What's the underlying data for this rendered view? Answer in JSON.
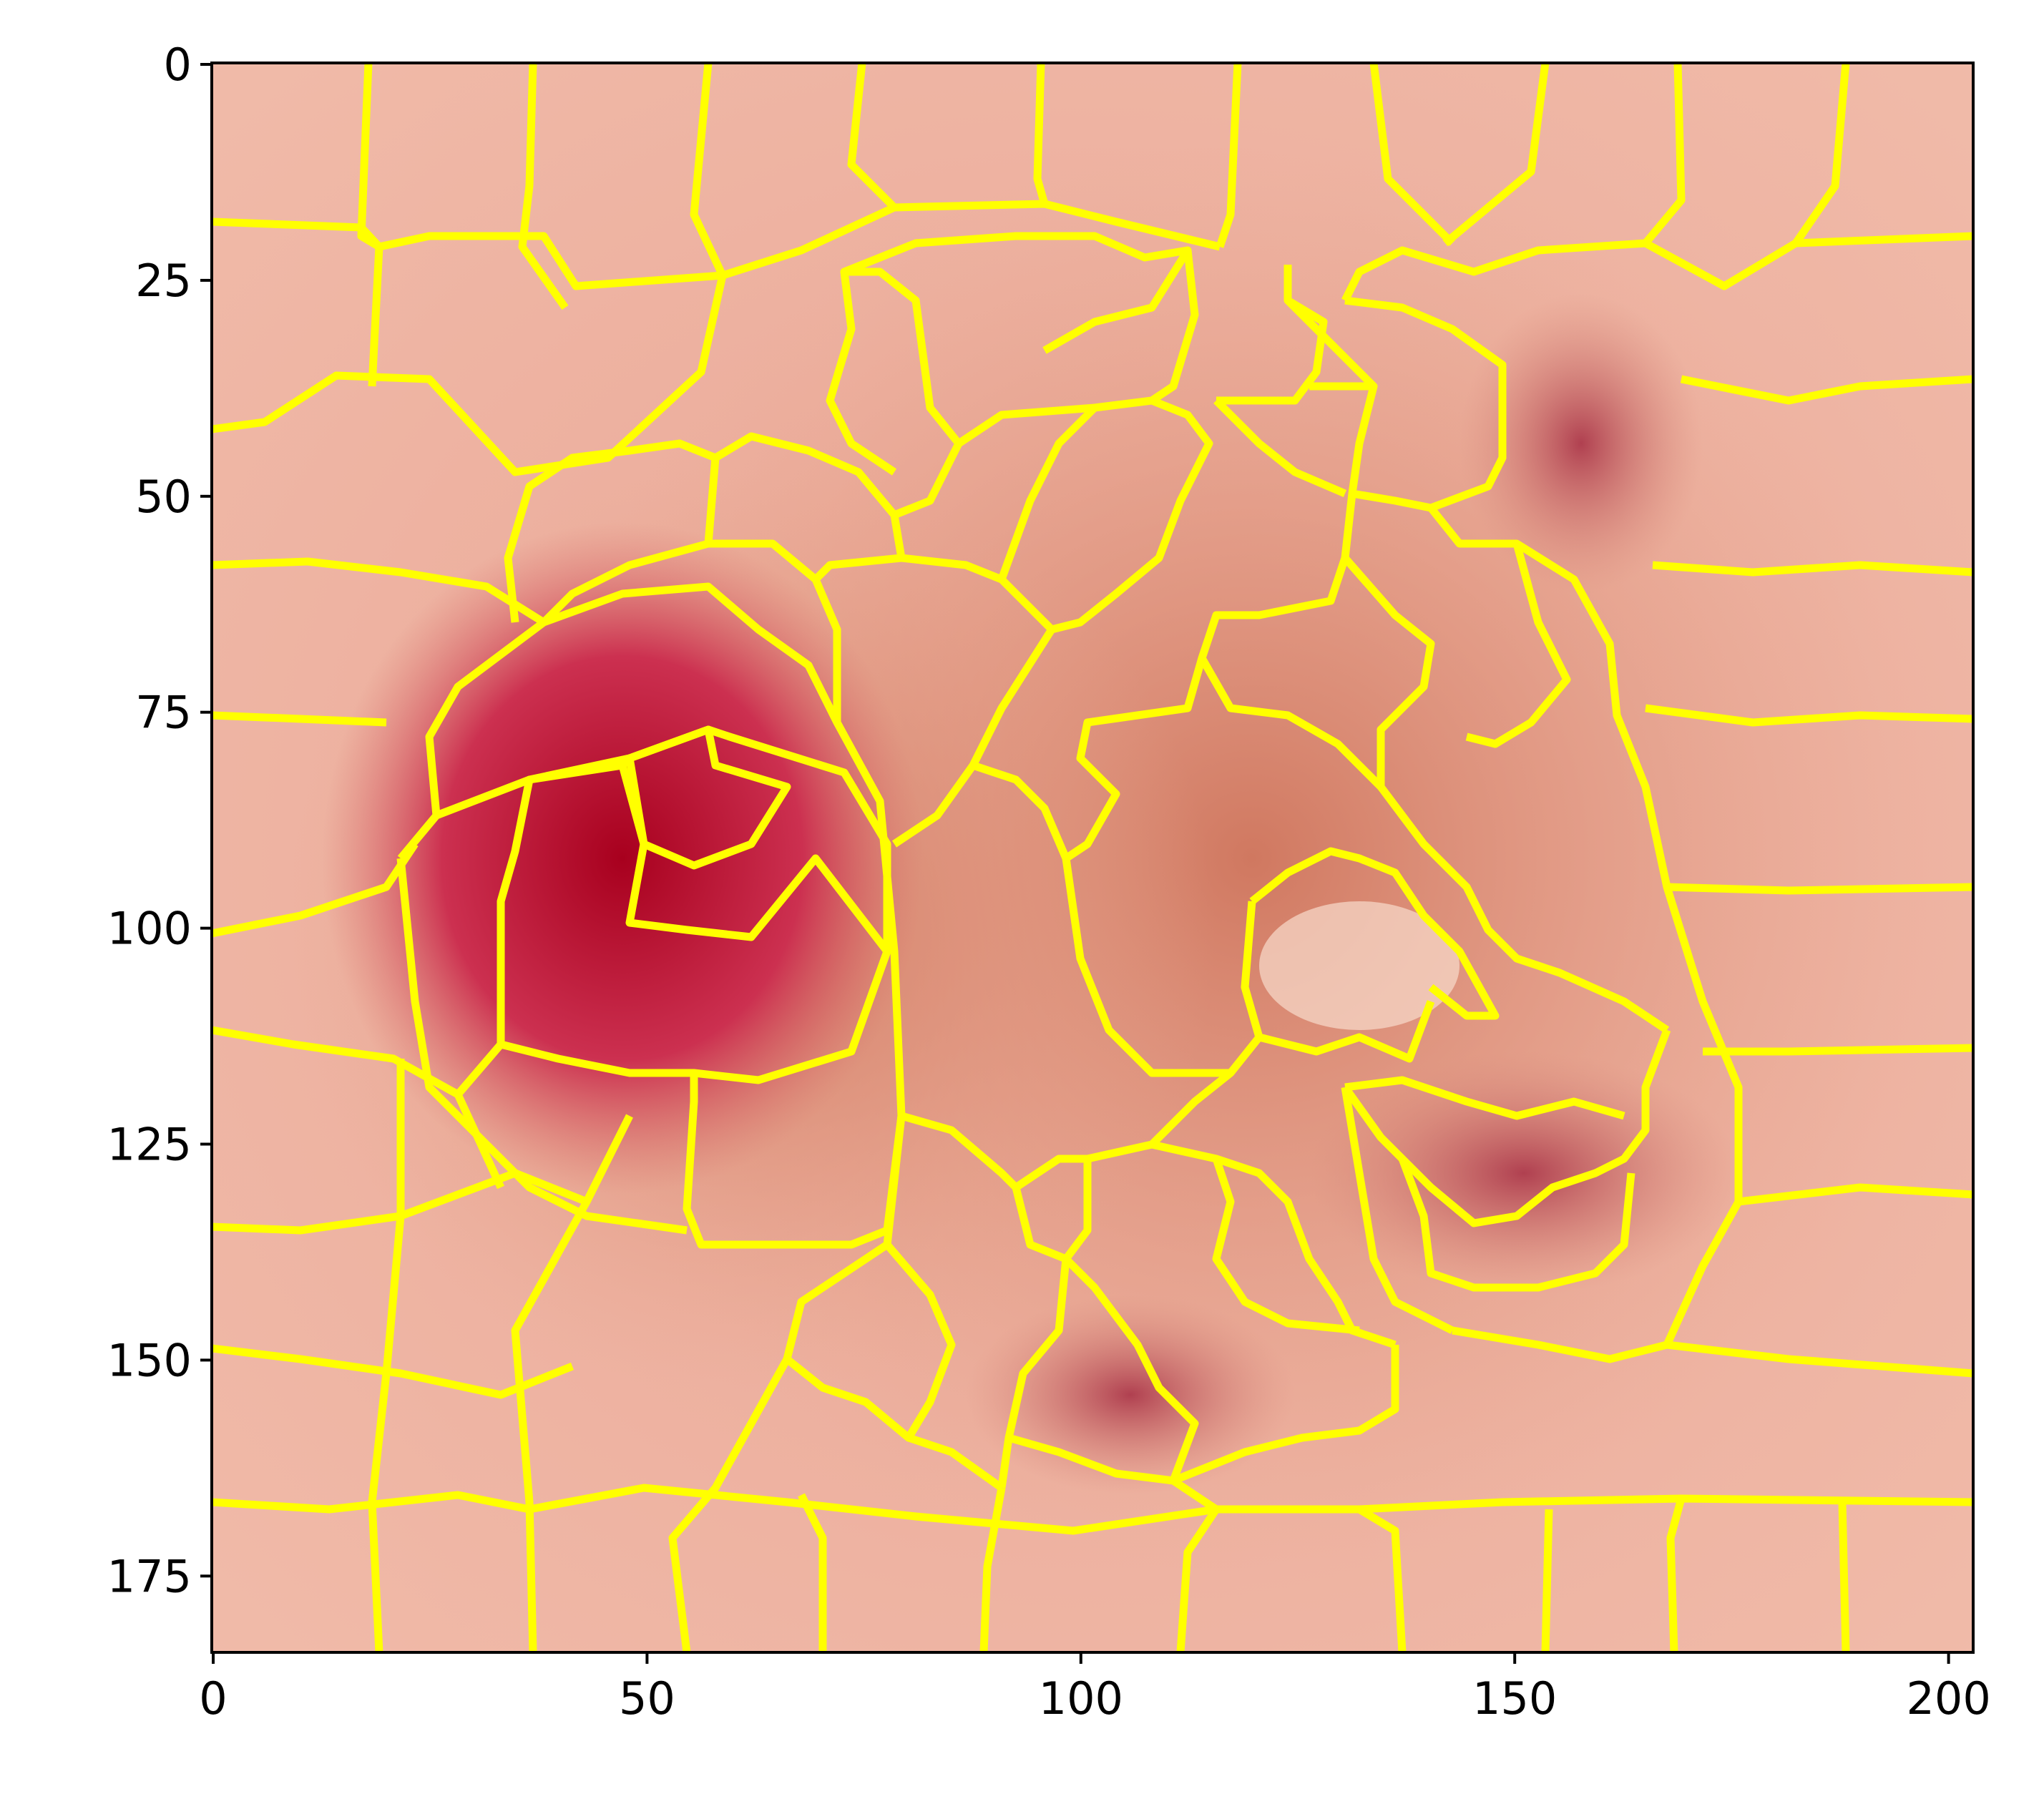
{
  "figure": {
    "x_axis": {
      "ticks": [
        0,
        50,
        100,
        150,
        200
      ],
      "range": [
        0,
        203
      ]
    },
    "y_axis": {
      "ticks": [
        0,
        25,
        50,
        75,
        100,
        125,
        150,
        175
      ],
      "range": [
        0,
        184
      ],
      "inverted": true
    },
    "image": {
      "description_tag": "skin-lesion-superpixel-overlay",
      "boundary_color": "#ffff00",
      "palette": {
        "background_skin": "#f0b8a8",
        "dark_lesion": "#b81a3a",
        "mid_lesion": "#d56a6a",
        "light_lesion": "#e8a08a"
      }
    }
  }
}
